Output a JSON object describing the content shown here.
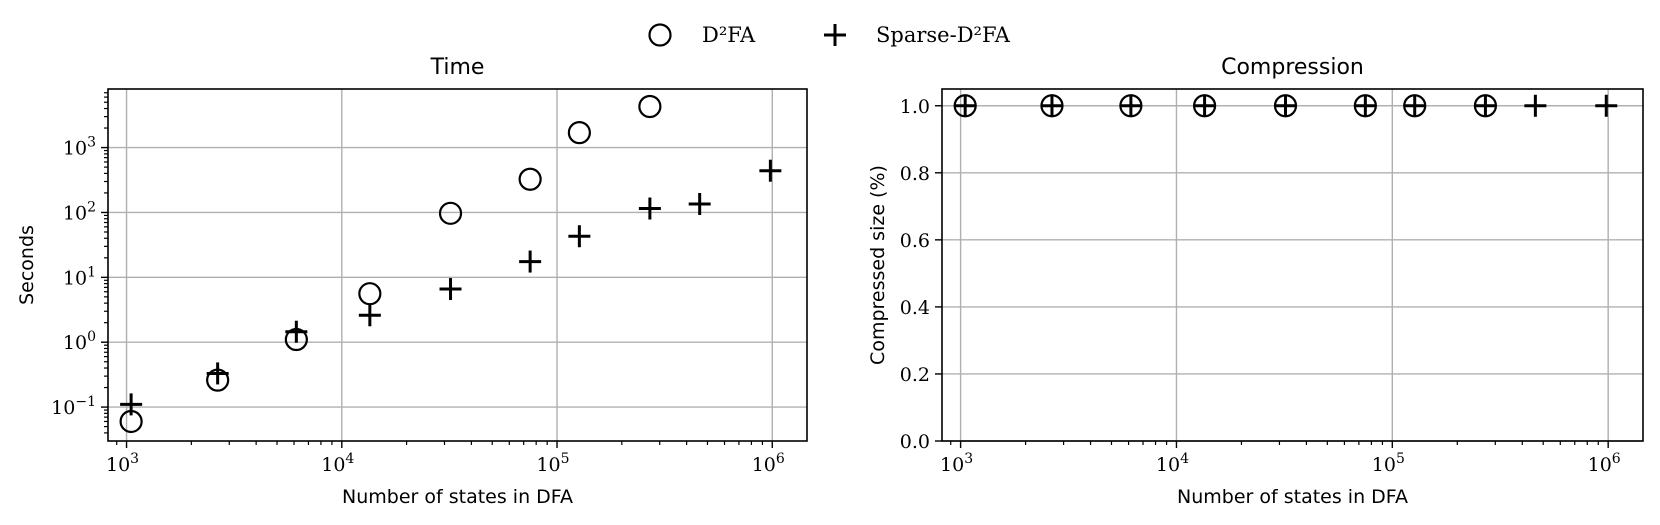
{
  "legend": {
    "placement": "top-center",
    "entries": [
      {
        "marker": "circle",
        "label": "D²FA"
      },
      {
        "marker": "plus",
        "label": "Sparse-D²FA"
      }
    ]
  },
  "chart_data": [
    {
      "type": "scatter",
      "title": "Time",
      "xlabel": "Number of states in DFA",
      "ylabel": "Seconds",
      "xscale": "log",
      "yscale": "log",
      "xlim": [
        820,
        1450000
      ],
      "ylim": [
        0.03,
        8000
      ],
      "grid": true,
      "xticks": [
        {
          "value": 1000,
          "base": "10",
          "exp": "3"
        },
        {
          "value": 10000,
          "base": "10",
          "exp": "4"
        },
        {
          "value": 100000,
          "base": "10",
          "exp": "5"
        },
        {
          "value": 1000000,
          "base": "10",
          "exp": "6"
        }
      ],
      "yticks": [
        {
          "value": 0.1,
          "base": "10",
          "exp": "−1"
        },
        {
          "value": 1,
          "base": "10",
          "exp": "0"
        },
        {
          "value": 10,
          "base": "10",
          "exp": "1"
        },
        {
          "value": 100,
          "base": "10",
          "exp": "2"
        },
        {
          "value": 1000,
          "base": "10",
          "exp": "3"
        }
      ],
      "series": [
        {
          "name": "D²FA",
          "marker": "circle",
          "points": [
            [
              1050,
              0.06
            ],
            [
              2650,
              0.26
            ],
            [
              6150,
              1.1
            ],
            [
              13500,
              5.6
            ],
            [
              32000,
              97
            ],
            [
              75000,
              325
            ],
            [
              127000,
              1700
            ],
            [
              270000,
              4300
            ]
          ]
        },
        {
          "name": "Sparse-D²FA",
          "marker": "plus",
          "points": [
            [
              1050,
              0.11
            ],
            [
              2650,
              0.33
            ],
            [
              6150,
              1.45
            ],
            [
              13500,
              2.6
            ],
            [
              32000,
              6.6
            ],
            [
              75000,
              17.5
            ],
            [
              127000,
              43
            ],
            [
              270000,
              115
            ],
            [
              460000,
              135
            ],
            [
              980000,
              440
            ]
          ]
        }
      ]
    },
    {
      "type": "scatter",
      "title": "Compression",
      "xlabel": "Number of states in DFA",
      "ylabel": "Compressed size (%)",
      "xscale": "log",
      "yscale": "linear",
      "xlim": [
        820,
        1450000
      ],
      "ylim": [
        0,
        1.05
      ],
      "grid": true,
      "xticks": [
        {
          "value": 1000,
          "base": "10",
          "exp": "3"
        },
        {
          "value": 10000,
          "base": "10",
          "exp": "4"
        },
        {
          "value": 100000,
          "base": "10",
          "exp": "5"
        },
        {
          "value": 1000000,
          "base": "10",
          "exp": "6"
        }
      ],
      "yticks": [
        {
          "value": 0.0,
          "label": "0.0"
        },
        {
          "value": 0.2,
          "label": "0.2"
        },
        {
          "value": 0.4,
          "label": "0.4"
        },
        {
          "value": 0.6,
          "label": "0.6"
        },
        {
          "value": 0.8,
          "label": "0.8"
        },
        {
          "value": 1.0,
          "label": "1.0"
        }
      ],
      "series": [
        {
          "name": "D²FA",
          "marker": "circle",
          "points": [
            [
              1050,
              1.0
            ],
            [
              2650,
              1.0
            ],
            [
              6150,
              1.0
            ],
            [
              13500,
              1.0
            ],
            [
              32000,
              1.0
            ],
            [
              75000,
              1.0
            ],
            [
              127000,
              1.0
            ],
            [
              270000,
              1.0
            ]
          ]
        },
        {
          "name": "Sparse-D²FA",
          "marker": "plus",
          "points": [
            [
              1050,
              1.0
            ],
            [
              2650,
              1.0
            ],
            [
              6150,
              1.0
            ],
            [
              13500,
              1.0
            ],
            [
              32000,
              1.0
            ],
            [
              75000,
              1.0
            ],
            [
              127000,
              1.0
            ],
            [
              270000,
              1.0
            ],
            [
              460000,
              1.0
            ],
            [
              980000,
              1.0
            ]
          ]
        }
      ]
    }
  ]
}
